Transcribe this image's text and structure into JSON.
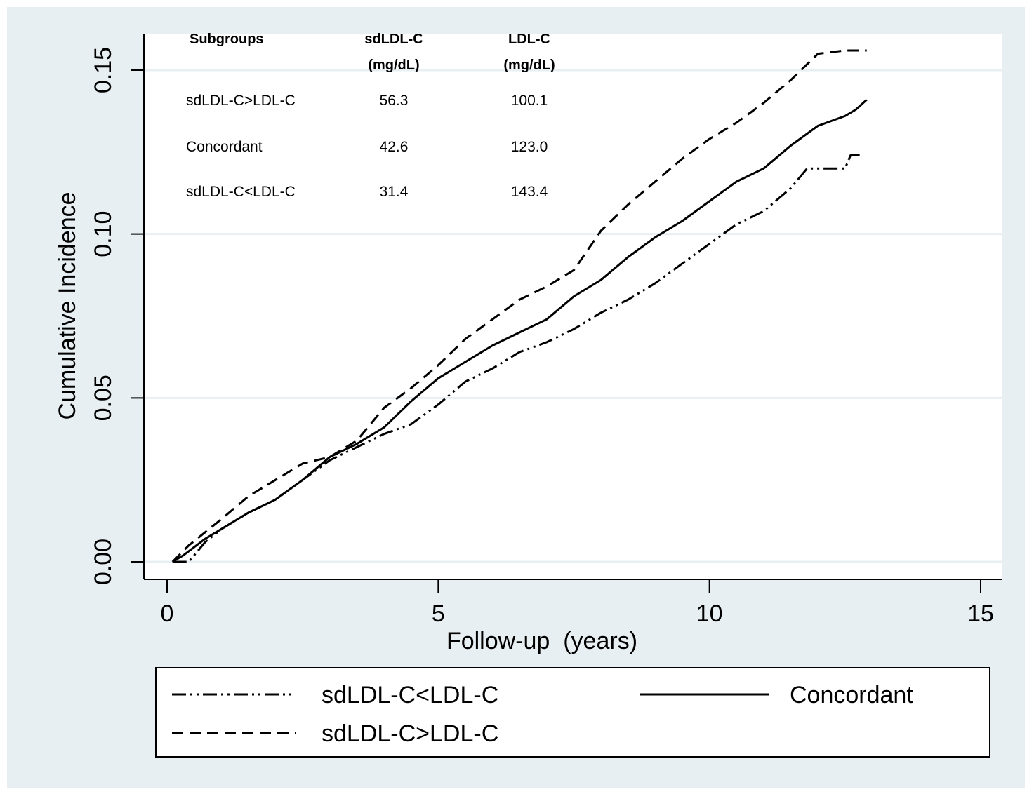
{
  "chart_data": {
    "type": "line",
    "title": "",
    "xlabel": "Follow-up  (years)",
    "ylabel": "Cumulative Incidence",
    "xlim": [
      0,
      15
    ],
    "ylim": [
      0,
      0.15
    ],
    "x_ticks": [
      0,
      5,
      10,
      15
    ],
    "x_tick_labels": [
      "0",
      "5",
      "10",
      "15"
    ],
    "y_ticks": [
      0,
      0.05,
      0.1,
      0.15
    ],
    "y_tick_labels": [
      "0.00",
      "0.05",
      "0.10",
      "0.15"
    ],
    "grid": "horizontal",
    "legend_position": "bottom",
    "colors": {
      "outer_background": "#e8eff2",
      "plot_background": "#ffffff",
      "grid": "#e8eff2",
      "line": "#000000"
    },
    "series": [
      {
        "name": "sdLDL-C<LDL-C",
        "style": "dash-dot-dot",
        "x": [
          0.1,
          0.4,
          0.7,
          1.0,
          1.5,
          2.0,
          2.5,
          3.0,
          3.5,
          4.0,
          4.5,
          5.0,
          5.5,
          6.0,
          6.5,
          7.0,
          7.5,
          8.0,
          8.5,
          9.0,
          9.5,
          10.0,
          10.5,
          11.0,
          11.5,
          11.8,
          12.0,
          12.5,
          12.6,
          12.8
        ],
        "values": [
          0.0,
          0.0,
          0.006,
          0.01,
          0.015,
          0.019,
          0.025,
          0.031,
          0.035,
          0.039,
          0.042,
          0.048,
          0.055,
          0.059,
          0.064,
          0.067,
          0.071,
          0.076,
          0.08,
          0.085,
          0.091,
          0.097,
          0.103,
          0.107,
          0.114,
          0.12,
          0.12,
          0.12,
          0.124,
          0.124
        ]
      },
      {
        "name": "Concordant",
        "style": "solid",
        "x": [
          0.1,
          0.3,
          0.7,
          1.0,
          1.5,
          2.0,
          2.5,
          3.0,
          3.5,
          4.0,
          4.5,
          5.0,
          5.5,
          6.0,
          6.5,
          7.0,
          7.5,
          8.0,
          8.5,
          9.0,
          9.5,
          10.0,
          10.5,
          11.0,
          11.5,
          12.0,
          12.5,
          12.7,
          12.9
        ],
        "values": [
          0.0,
          0.002,
          0.007,
          0.01,
          0.015,
          0.019,
          0.025,
          0.032,
          0.036,
          0.041,
          0.049,
          0.056,
          0.061,
          0.066,
          0.07,
          0.074,
          0.081,
          0.086,
          0.093,
          0.099,
          0.104,
          0.11,
          0.116,
          0.12,
          0.127,
          0.133,
          0.136,
          0.138,
          0.141
        ]
      },
      {
        "name": "sdLDL-C>LDL-C",
        "style": "dashed",
        "x": [
          0.1,
          0.4,
          0.7,
          1.0,
          1.5,
          2.0,
          2.5,
          3.0,
          3.5,
          4.0,
          4.5,
          5.0,
          5.5,
          6.0,
          6.5,
          7.0,
          7.5,
          8.0,
          8.5,
          9.0,
          9.5,
          10.0,
          10.5,
          11.0,
          11.5,
          12.0,
          12.5,
          12.9
        ],
        "values": [
          0.0,
          0.005,
          0.009,
          0.013,
          0.02,
          0.025,
          0.03,
          0.032,
          0.037,
          0.047,
          0.053,
          0.06,
          0.068,
          0.074,
          0.08,
          0.084,
          0.089,
          0.101,
          0.109,
          0.116,
          0.123,
          0.129,
          0.134,
          0.14,
          0.147,
          0.155,
          0.156,
          0.156
        ]
      }
    ],
    "inset_table": {
      "headers": [
        "Subgroups",
        "sdLDL-C\n(mg/dL)",
        "LDL-C\n(mg/dL)"
      ],
      "rows": [
        [
          "sdLDL-C>LDL-C",
          "56.3",
          "100.1"
        ],
        [
          "Concordant",
          "42.6",
          "123.0"
        ],
        [
          "sdLDL-C<LDL-C",
          "31.4",
          "143.4"
        ]
      ]
    },
    "legend": [
      {
        "label": "sdLDL-C<LDL-C",
        "style": "dash-dot-dot"
      },
      {
        "label": "Concordant",
        "style": "solid"
      },
      {
        "label": "sdLDL-C>LDL-C",
        "style": "dashed"
      }
    ]
  }
}
